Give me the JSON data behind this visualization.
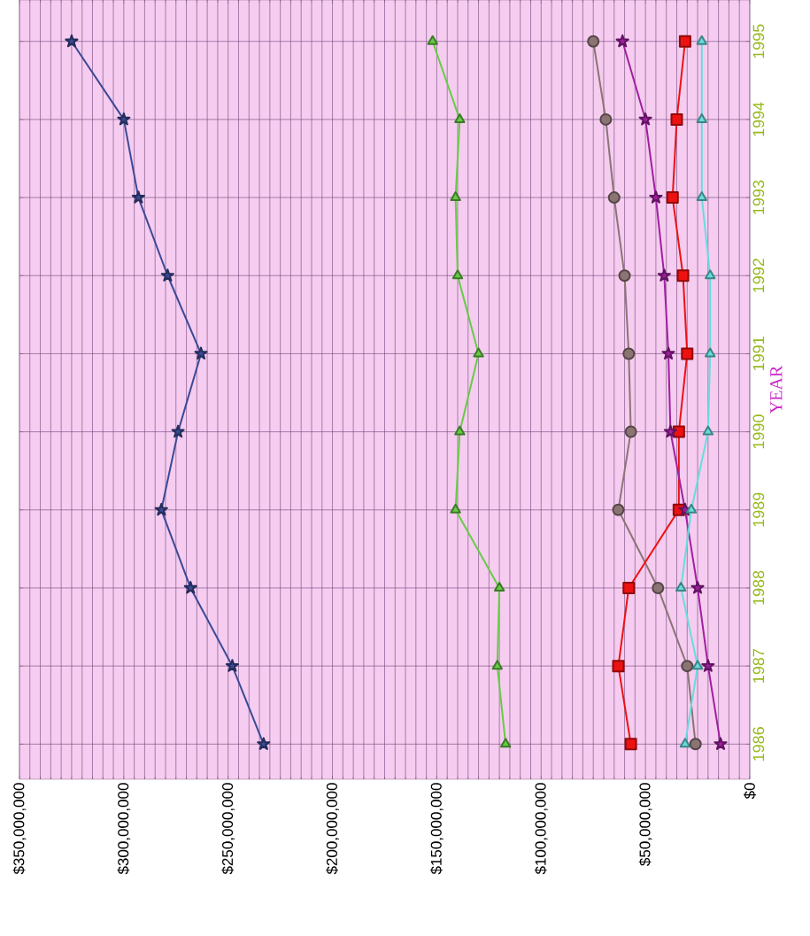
{
  "chart_data": {
    "type": "line",
    "orientation": "horizontal",
    "ylabel": "YEAR",
    "x": [
      1986,
      1987,
      1988,
      1989,
      1990,
      1991,
      1992,
      1993,
      1994,
      1995
    ],
    "ylim": [
      1985.55,
      1995.53
    ],
    "yticks": [
      1986,
      1987,
      1988,
      1989,
      1990,
      1991,
      1992,
      1993,
      1994,
      1995
    ],
    "xlim": [
      350000000,
      0
    ],
    "xticks": [
      {
        "value": 0,
        "label": "$0"
      },
      {
        "value": 50000000,
        "label": "$50,000,000"
      },
      {
        "value": 100000000,
        "label": "$100,000,000"
      },
      {
        "value": 150000000,
        "label": "$150,000,000"
      },
      {
        "value": 200000000,
        "label": "$200,000,000"
      },
      {
        "value": 250000000,
        "label": "$250,000,000"
      },
      {
        "value": 300000000,
        "label": "$300,000,000"
      },
      {
        "value": 350000000,
        "label": "$350,000,000"
      },
      {
        "value": 5000000,
        "label": null
      },
      {
        "value": 10000000,
        "label": null
      },
      {
        "value": 15000000,
        "label": null
      },
      {
        "value": 20000000,
        "label": null
      },
      {
        "value": 25000000,
        "label": null
      },
      {
        "value": 30000000,
        "label": null
      },
      {
        "value": 35000000,
        "label": null
      },
      {
        "value": 40000000,
        "label": null
      },
      {
        "value": 45000000,
        "label": null
      },
      {
        "value": 55000000,
        "label": null
      },
      {
        "value": 60000000,
        "label": null
      },
      {
        "value": 65000000,
        "label": null
      },
      {
        "value": 70000000,
        "label": null
      },
      {
        "value": 75000000,
        "label": null
      },
      {
        "value": 80000000,
        "label": null
      },
      {
        "value": 85000000,
        "label": null
      },
      {
        "value": 90000000,
        "label": null
      },
      {
        "value": 95000000,
        "label": null
      },
      {
        "value": 105000000,
        "label": null
      },
      {
        "value": 110000000,
        "label": null
      },
      {
        "value": 115000000,
        "label": null
      },
      {
        "value": 120000000,
        "label": null
      },
      {
        "value": 125000000,
        "label": null
      },
      {
        "value": 130000000,
        "label": null
      },
      {
        "value": 135000000,
        "label": null
      },
      {
        "value": 140000000,
        "label": null
      },
      {
        "value": 145000000,
        "label": null
      },
      {
        "value": 155000000,
        "label": null
      },
      {
        "value": 160000000,
        "label": null
      },
      {
        "value": 165000000,
        "label": null
      },
      {
        "value": 170000000,
        "label": null
      },
      {
        "value": 175000000,
        "label": null
      },
      {
        "value": 180000000,
        "label": null
      },
      {
        "value": 185000000,
        "label": null
      },
      {
        "value": 190000000,
        "label": null
      },
      {
        "value": 195000000,
        "label": null
      },
      {
        "value": 205000000,
        "label": null
      },
      {
        "value": 210000000,
        "label": null
      },
      {
        "value": 215000000,
        "label": null
      },
      {
        "value": 220000000,
        "label": null
      },
      {
        "value": 225000000,
        "label": null
      },
      {
        "value": 230000000,
        "label": null
      },
      {
        "value": 235000000,
        "label": null
      },
      {
        "value": 240000000,
        "label": null
      },
      {
        "value": 245000000,
        "label": null
      },
      {
        "value": 255000000,
        "label": null
      },
      {
        "value": 260000000,
        "label": null
      },
      {
        "value": 265000000,
        "label": null
      },
      {
        "value": 270000000,
        "label": null
      },
      {
        "value": 275000000,
        "label": null
      },
      {
        "value": 280000000,
        "label": null
      },
      {
        "value": 285000000,
        "label": null
      },
      {
        "value": 290000000,
        "label": null
      },
      {
        "value": 295000000,
        "label": null
      },
      {
        "value": 305000000,
        "label": null
      },
      {
        "value": 310000000,
        "label": null
      },
      {
        "value": 315000000,
        "label": null
      },
      {
        "value": 320000000,
        "label": null
      },
      {
        "value": 325000000,
        "label": null
      },
      {
        "value": 330000000,
        "label": null
      },
      {
        "value": 335000000,
        "label": null
      },
      {
        "value": 340000000,
        "label": null
      },
      {
        "value": 345000000,
        "label": null
      }
    ],
    "grid": true,
    "series": [
      {
        "color": "#3b4a96",
        "marker": "star",
        "values": [
          233000000,
          248000000,
          268000000,
          282000000,
          274000000,
          263000000,
          279000000,
          293000000,
          300000000,
          325000000
        ]
      },
      {
        "color": "#66cc44",
        "marker": "triangle",
        "values": [
          117000000,
          121000000,
          120000000,
          141000000,
          139000000,
          130000000,
          140000000,
          141000000,
          139000000,
          152000000
        ]
      },
      {
        "color": "#8c7474",
        "marker": "circle",
        "values": [
          26000000,
          30000000,
          44000000,
          63000000,
          57000000,
          58000000,
          60000000,
          65000000,
          69000000,
          75000000
        ]
      },
      {
        "color": "#ee1111",
        "marker": "square",
        "values": [
          57000000,
          63000000,
          58000000,
          34000000,
          34000000,
          30000000,
          32000000,
          37000000,
          35000000,
          31000000
        ]
      },
      {
        "color": "#a020a0",
        "marker": "star",
        "values": [
          14000000,
          20000000,
          25000000,
          31000000,
          38000000,
          39000000,
          41000000,
          45000000,
          50000000,
          61000000
        ]
      },
      {
        "color": "#66dddd",
        "marker": "triangle",
        "values": [
          31000000,
          25000000,
          33000000,
          28000000,
          20000000,
          19000000,
          19000000,
          23000000,
          23000000,
          23000000
        ]
      }
    ]
  }
}
